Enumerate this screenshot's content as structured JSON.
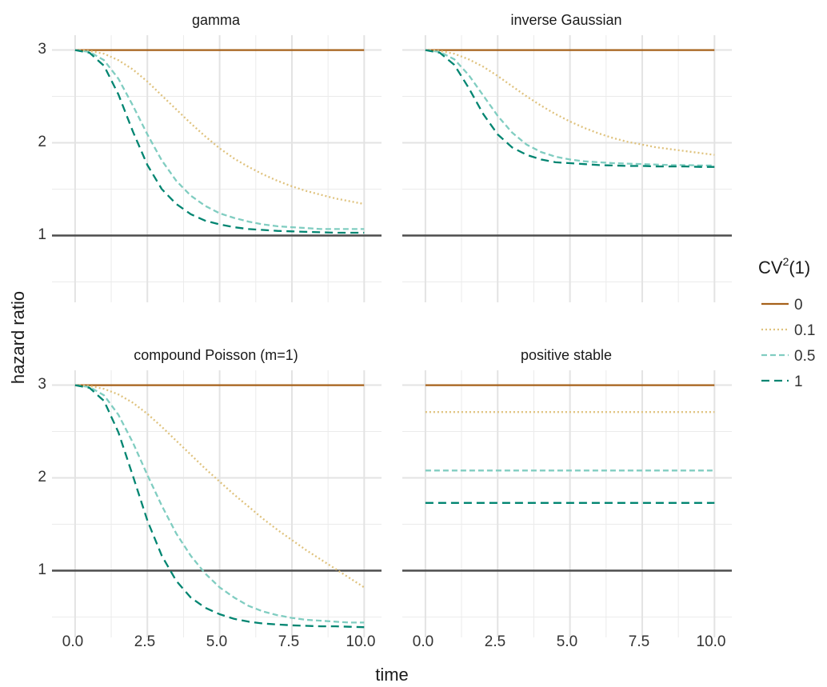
{
  "chart_data": {
    "type": "line",
    "xlabel": "time",
    "ylabel": "hazard ratio",
    "xlim": [
      -0.8,
      10.6
    ],
    "ylim": [
      0.28,
      3.16
    ],
    "x_ticks": [
      "0.0",
      "2.5",
      "5.0",
      "7.5",
      "10.0"
    ],
    "y_ticks": [
      "1",
      "2",
      "3"
    ],
    "grid": "on",
    "reference_line": 1,
    "legend": {
      "title_base": "CV",
      "title_sup": "2",
      "title_suffix": "(1)",
      "position": "right",
      "entries": [
        {
          "label": "0",
          "color": "#a6611a",
          "dash": "solid"
        },
        {
          "label": "0.1",
          "color": "#dfc27d",
          "dash": "dotted"
        },
        {
          "label": "0.5",
          "color": "#80cdc1",
          "dash": "dashed"
        },
        {
          "label": "1",
          "color": "#018571",
          "dash": "longdash"
        }
      ]
    },
    "panels": [
      {
        "title": "gamma",
        "x": [
          0,
          0.5,
          1,
          1.5,
          2,
          2.5,
          3,
          3.5,
          4,
          4.5,
          5,
          5.5,
          6,
          6.5,
          7,
          7.5,
          8,
          8.5,
          9,
          9.5,
          10
        ],
        "series": [
          {
            "name": "0",
            "values": [
              3,
              3,
              3,
              3,
              3,
              3,
              3,
              3,
              3,
              3,
              3,
              3,
              3,
              3,
              3,
              3,
              3,
              3,
              3,
              3,
              3
            ]
          },
          {
            "name": "0.1",
            "values": [
              3,
              2.99,
              2.96,
              2.89,
              2.79,
              2.66,
              2.51,
              2.36,
              2.21,
              2.07,
              1.94,
              1.83,
              1.74,
              1.66,
              1.59,
              1.53,
              1.48,
              1.44,
              1.4,
              1.37,
              1.34
            ]
          },
          {
            "name": "0.5",
            "values": [
              3,
              2.98,
              2.89,
              2.69,
              2.4,
              2.09,
              1.81,
              1.59,
              1.43,
              1.32,
              1.24,
              1.19,
              1.15,
              1.12,
              1.1,
              1.09,
              1.08,
              1.07,
              1.07,
              1.07,
              1.07
            ]
          },
          {
            "name": "1",
            "values": [
              3,
              2.97,
              2.83,
              2.52,
              2.12,
              1.76,
              1.5,
              1.34,
              1.23,
              1.16,
              1.12,
              1.09,
              1.07,
              1.06,
              1.05,
              1.045,
              1.04,
              1.035,
              1.03,
              1.03,
              1.03
            ]
          }
        ]
      },
      {
        "title": "inverse Gaussian",
        "x": [
          0,
          0.5,
          1,
          1.5,
          2,
          2.5,
          3,
          3.5,
          4,
          4.5,
          5,
          5.5,
          6,
          6.5,
          7,
          7.5,
          8,
          8.5,
          9,
          9.5,
          10
        ],
        "series": [
          {
            "name": "0",
            "values": [
              3,
              3,
              3,
              3,
              3,
              3,
              3,
              3,
              3,
              3,
              3,
              3,
              3,
              3,
              3,
              3,
              3,
              3,
              3,
              3,
              3
            ]
          },
          {
            "name": "0.1",
            "values": [
              3,
              2.99,
              2.96,
              2.9,
              2.82,
              2.72,
              2.61,
              2.5,
              2.4,
              2.31,
              2.23,
              2.16,
              2.1,
              2.05,
              2.01,
              1.98,
              1.95,
              1.93,
              1.91,
              1.89,
              1.87
            ]
          },
          {
            "name": "0.5",
            "values": [
              3,
              2.98,
              2.9,
              2.73,
              2.51,
              2.29,
              2.11,
              1.98,
              1.9,
              1.85,
              1.82,
              1.8,
              1.79,
              1.78,
              1.775,
              1.77,
              1.765,
              1.76,
              1.76,
              1.755,
              1.755
            ]
          },
          {
            "name": "1",
            "values": [
              3,
              2.97,
              2.84,
              2.59,
              2.31,
              2.09,
              1.95,
              1.87,
              1.82,
              1.79,
              1.78,
              1.77,
              1.76,
              1.755,
              1.75,
              1.75,
              1.745,
              1.745,
              1.745,
              1.74,
              1.74
            ]
          }
        ]
      },
      {
        "title": "compound Poisson (m=1)",
        "x": [
          0,
          0.5,
          1,
          1.5,
          2,
          2.5,
          3,
          3.5,
          4,
          4.5,
          5,
          5.5,
          6,
          6.5,
          7,
          7.5,
          8,
          8.5,
          9,
          9.5,
          10
        ],
        "series": [
          {
            "name": "0",
            "values": [
              3,
              3,
              3,
              3,
              3,
              3,
              3,
              3,
              3,
              3,
              3,
              3,
              3,
              3,
              3,
              3,
              3,
              3,
              3,
              3,
              3
            ]
          },
          {
            "name": "0.1",
            "values": [
              3,
              2.99,
              2.96,
              2.9,
              2.81,
              2.69,
              2.55,
              2.4,
              2.25,
              2.1,
              1.96,
              1.82,
              1.69,
              1.56,
              1.44,
              1.33,
              1.22,
              1.12,
              1.02,
              0.92,
              0.82
            ]
          },
          {
            "name": "0.5",
            "values": [
              3,
              2.98,
              2.89,
              2.68,
              2.38,
              2.03,
              1.7,
              1.4,
              1.16,
              0.97,
              0.82,
              0.71,
              0.62,
              0.56,
              0.52,
              0.49,
              0.47,
              0.46,
              0.45,
              0.44,
              0.44
            ]
          },
          {
            "name": "1",
            "values": [
              3,
              2.97,
              2.83,
              2.49,
              2.02,
              1.54,
              1.16,
              0.89,
              0.71,
              0.6,
              0.53,
              0.48,
              0.45,
              0.43,
              0.42,
              0.41,
              0.405,
              0.4,
              0.4,
              0.395,
              0.39
            ]
          }
        ]
      },
      {
        "title": "positive stable",
        "x": [
          0,
          10
        ],
        "series": [
          {
            "name": "0",
            "values": [
              3,
              3
            ]
          },
          {
            "name": "0.1",
            "values": [
              2.71,
              2.71
            ]
          },
          {
            "name": "0.5",
            "values": [
              2.08,
              2.08
            ]
          },
          {
            "name": "1",
            "values": [
              1.73,
              1.73
            ]
          }
        ]
      }
    ]
  }
}
